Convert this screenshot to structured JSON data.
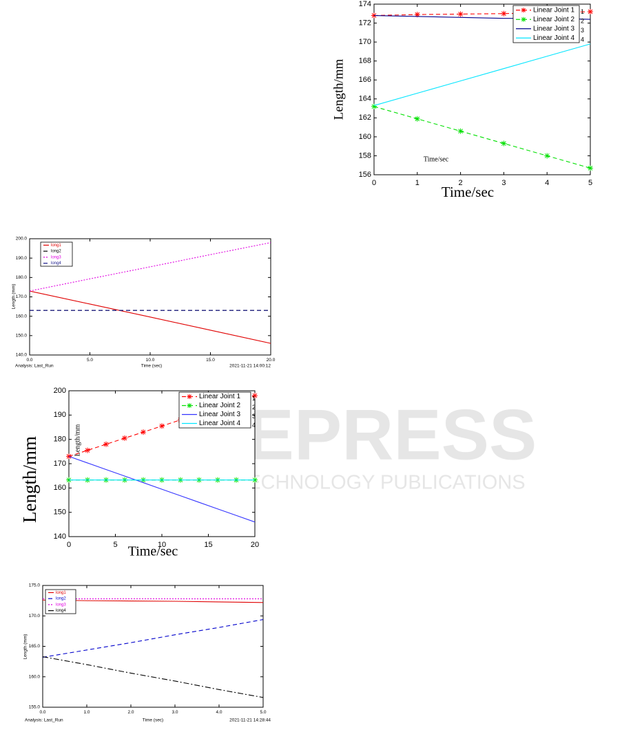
{
  "watermark": {
    "title": "SCITEPRESS",
    "subtitle": "SCIENCE AND TECHNOLOGY PUBLICATIONS"
  },
  "chart_data": [
    {
      "type": "line",
      "x_label": "Time/sec",
      "y_label": "Length/mm",
      "annotation": "Time/sec",
      "x": [
        0,
        1,
        2,
        3,
        4,
        5
      ],
      "xlim": [
        0,
        5
      ],
      "xticks": [
        0,
        1,
        2,
        3,
        4,
        5
      ],
      "ylim": [
        156,
        174
      ],
      "yticks": [
        156,
        158,
        160,
        162,
        164,
        166,
        168,
        170,
        172,
        174
      ],
      "grid": false,
      "legend": "upper right",
      "legend_tags": [
        "1",
        "2",
        "3",
        "4"
      ],
      "series": [
        {
          "name": "Linear Joint 1",
          "color": "#ff0000",
          "line_style": "dashed",
          "marker": "*",
          "values": [
            172.8,
            172.9,
            172.95,
            173.0,
            173.1,
            173.2
          ]
        },
        {
          "name": "Linear Joint 2",
          "color": "#00e000",
          "line_style": "dashed",
          "marker": "*",
          "values": [
            163.2,
            161.9,
            160.6,
            159.3,
            158.0,
            156.7
          ]
        },
        {
          "name": "Linear Joint 3",
          "color": "#00008b",
          "line_style": "solid",
          "values": [
            172.8,
            172.7,
            172.6,
            172.5,
            172.5,
            172.4
          ]
        },
        {
          "name": "Linear Joint 4",
          "color": "#00e5ff",
          "line_style": "solid",
          "values": [
            163.3,
            164.6,
            165.9,
            167.2,
            168.5,
            169.8
          ]
        }
      ]
    },
    {
      "type": "line",
      "x_label": "Time (sec)",
      "y_label": "Length (mm)",
      "footer_left": "Analysis: Last_Run",
      "footer_right": "2021-11-21 14:00:12",
      "x": [
        0,
        5,
        10,
        15,
        20
      ],
      "xlim": [
        0,
        20
      ],
      "xticks": [
        {
          "value": 0,
          "label": "0.0"
        },
        {
          "value": 5,
          "label": "5.0"
        },
        {
          "value": 10,
          "label": "10.0"
        },
        {
          "value": 15,
          "label": "15.0"
        },
        {
          "value": 20,
          "label": "20.0"
        }
      ],
      "ylim": [
        140,
        200
      ],
      "yticks": [
        {
          "value": 140,
          "label": "140.0"
        },
        {
          "value": 150,
          "label": "150.0"
        },
        {
          "value": 160,
          "label": "160.0"
        },
        {
          "value": 170,
          "label": "170.0"
        },
        {
          "value": 180,
          "label": "180.0"
        },
        {
          "value": 190,
          "label": "190.0"
        },
        {
          "value": 200,
          "label": "200.0"
        }
      ],
      "grid": false,
      "legend": "upper left",
      "series": [
        {
          "name": "long1",
          "color": "#e00000",
          "line_style": "solid",
          "values": [
            173,
            166.3,
            159.6,
            152.8,
            146
          ]
        },
        {
          "name": "long2",
          "color": "#000000",
          "line_style": "dashed",
          "values": [
            163,
            163,
            163,
            163,
            163
          ]
        },
        {
          "name": "long3",
          "color": "#e000e0",
          "line_style": "dotted",
          "values": [
            173,
            179.3,
            185.5,
            191.8,
            198
          ]
        },
        {
          "name": "long4",
          "color": "#1a1a8c",
          "line_style": "dashed",
          "values": [
            163,
            163,
            163,
            163,
            163
          ]
        }
      ]
    },
    {
      "type": "line",
      "x_label": "Time/sec",
      "y_label": "Length/mm",
      "annotation": "Length/mm",
      "x": [
        0,
        2,
        4,
        6,
        8,
        10,
        12,
        14,
        16,
        18,
        20
      ],
      "xlim": [
        0,
        20
      ],
      "xticks": [
        0,
        5,
        10,
        15,
        20
      ],
      "ylim": [
        140,
        200
      ],
      "yticks": [
        140,
        150,
        160,
        170,
        180,
        190,
        200
      ],
      "grid": false,
      "legend": "upper right",
      "legend_tags": [
        "1",
        "2",
        "3",
        "4"
      ],
      "series": [
        {
          "name": "Linear Joint 1",
          "color": "#ff0000",
          "line_style": "dashed",
          "marker": "*",
          "values": [
            173,
            175.5,
            178,
            180.5,
            183,
            185.5,
            188,
            190.5,
            193,
            195.5,
            198
          ]
        },
        {
          "name": "Linear Joint 2",
          "color": "#00e000",
          "line_style": "dashed",
          "marker": "*",
          "values": [
            163.3,
            163.3,
            163.3,
            163.3,
            163.3,
            163.3,
            163.3,
            163.3,
            163.3,
            163.3,
            163.3
          ]
        },
        {
          "name": "Linear Joint 3",
          "color": "#3333ff",
          "line_style": "solid",
          "values": [
            173,
            170.3,
            167.6,
            164.9,
            162.2,
            159.5,
            156.8,
            154.1,
            151.4,
            148.7,
            146
          ]
        },
        {
          "name": "Linear Joint 4",
          "color": "#00e5ff",
          "line_style": "solid",
          "values": [
            163.3,
            163.3,
            163.3,
            163.3,
            163.3,
            163.3,
            163.3,
            163.3,
            163.3,
            163.3,
            163.3
          ]
        }
      ]
    },
    {
      "type": "line",
      "x_label": "Time (sec)",
      "y_label": "Length (mm)",
      "footer_left": "Analysis: Last_Run",
      "footer_right": "2021-11-21 14:28:44",
      "x": [
        0,
        1,
        2,
        3,
        4,
        5
      ],
      "xlim": [
        0,
        5
      ],
      "xticks": [
        {
          "value": 0,
          "label": "0.0"
        },
        {
          "value": 1,
          "label": "1.0"
        },
        {
          "value": 2,
          "label": "2.0"
        },
        {
          "value": 3,
          "label": "3.0"
        },
        {
          "value": 4,
          "label": "4.0"
        },
        {
          "value": 5,
          "label": "5.0"
        }
      ],
      "ylim": [
        155,
        175
      ],
      "yticks": [
        {
          "value": 155,
          "label": "155.0"
        },
        {
          "value": 160,
          "label": "160.0"
        },
        {
          "value": 165,
          "label": "165.0"
        },
        {
          "value": 170,
          "label": "170.0"
        },
        {
          "value": 175,
          "label": "175.0"
        }
      ],
      "grid": false,
      "legend": "upper left",
      "series": [
        {
          "name": "long1",
          "color": "#e00000",
          "line_style": "solid",
          "values": [
            172.6,
            172.5,
            172.45,
            172.4,
            172.3,
            172.2
          ]
        },
        {
          "name": "long2",
          "color": "#0000cc",
          "line_style": "dashed",
          "values": [
            163.2,
            164.4,
            165.6,
            166.9,
            168.1,
            169.4
          ]
        },
        {
          "name": "long3",
          "color": "#e000e0",
          "line_style": "dotted",
          "values": [
            172.8,
            172.8,
            172.8,
            172.8,
            172.8,
            172.8
          ]
        },
        {
          "name": "long4",
          "color": "#000000",
          "line_style": "dashdot",
          "values": [
            163.3,
            162.0,
            160.6,
            159.3,
            157.9,
            156.6
          ]
        }
      ]
    }
  ]
}
